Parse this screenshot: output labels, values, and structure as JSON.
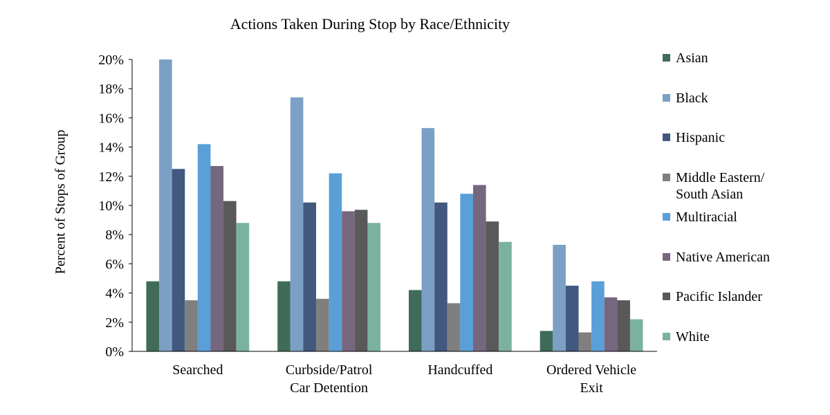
{
  "chart_data": {
    "type": "bar",
    "title": "Actions Taken During Stop by Race/Ethnicity",
    "xlabel": "",
    "ylabel": "Percent of Stops of  Group",
    "ylim": [
      0,
      20
    ],
    "yticks": [
      "0%",
      "2%",
      "4%",
      "6%",
      "8%",
      "10%",
      "12%",
      "14%",
      "16%",
      "18%",
      "20%"
    ],
    "categories": [
      "Searched",
      "Curbside/Patrol\nCar Detention",
      "Handcuffed",
      "Ordered Vehicle\nExit"
    ],
    "legend_position": "right",
    "series": [
      {
        "name": "Asian",
        "color": "#3f6b58",
        "values": [
          4.8,
          4.8,
          4.2,
          1.4
        ]
      },
      {
        "name": "Black",
        "color": "#7c9fc5",
        "values": [
          20.0,
          17.4,
          15.3,
          7.3
        ]
      },
      {
        "name": "Hispanic",
        "color": "#41587f",
        "values": [
          12.5,
          10.2,
          10.2,
          4.5
        ]
      },
      {
        "name": "Middle Eastern/\nSouth Asian",
        "color": "#7f7f7f",
        "values": [
          3.5,
          3.6,
          3.3,
          1.3
        ]
      },
      {
        "name": "Multiracial",
        "color": "#5a9fd7",
        "values": [
          14.2,
          12.2,
          10.8,
          4.8
        ]
      },
      {
        "name": "Native American",
        "color": "#76677f",
        "values": [
          12.7,
          9.6,
          11.4,
          3.7
        ]
      },
      {
        "name": "Pacific Islander",
        "color": "#595959",
        "values": [
          10.3,
          9.7,
          8.9,
          3.5
        ]
      },
      {
        "name": "White",
        "color": "#7bb29f",
        "values": [
          8.8,
          8.8,
          7.5,
          2.2
        ]
      }
    ]
  }
}
